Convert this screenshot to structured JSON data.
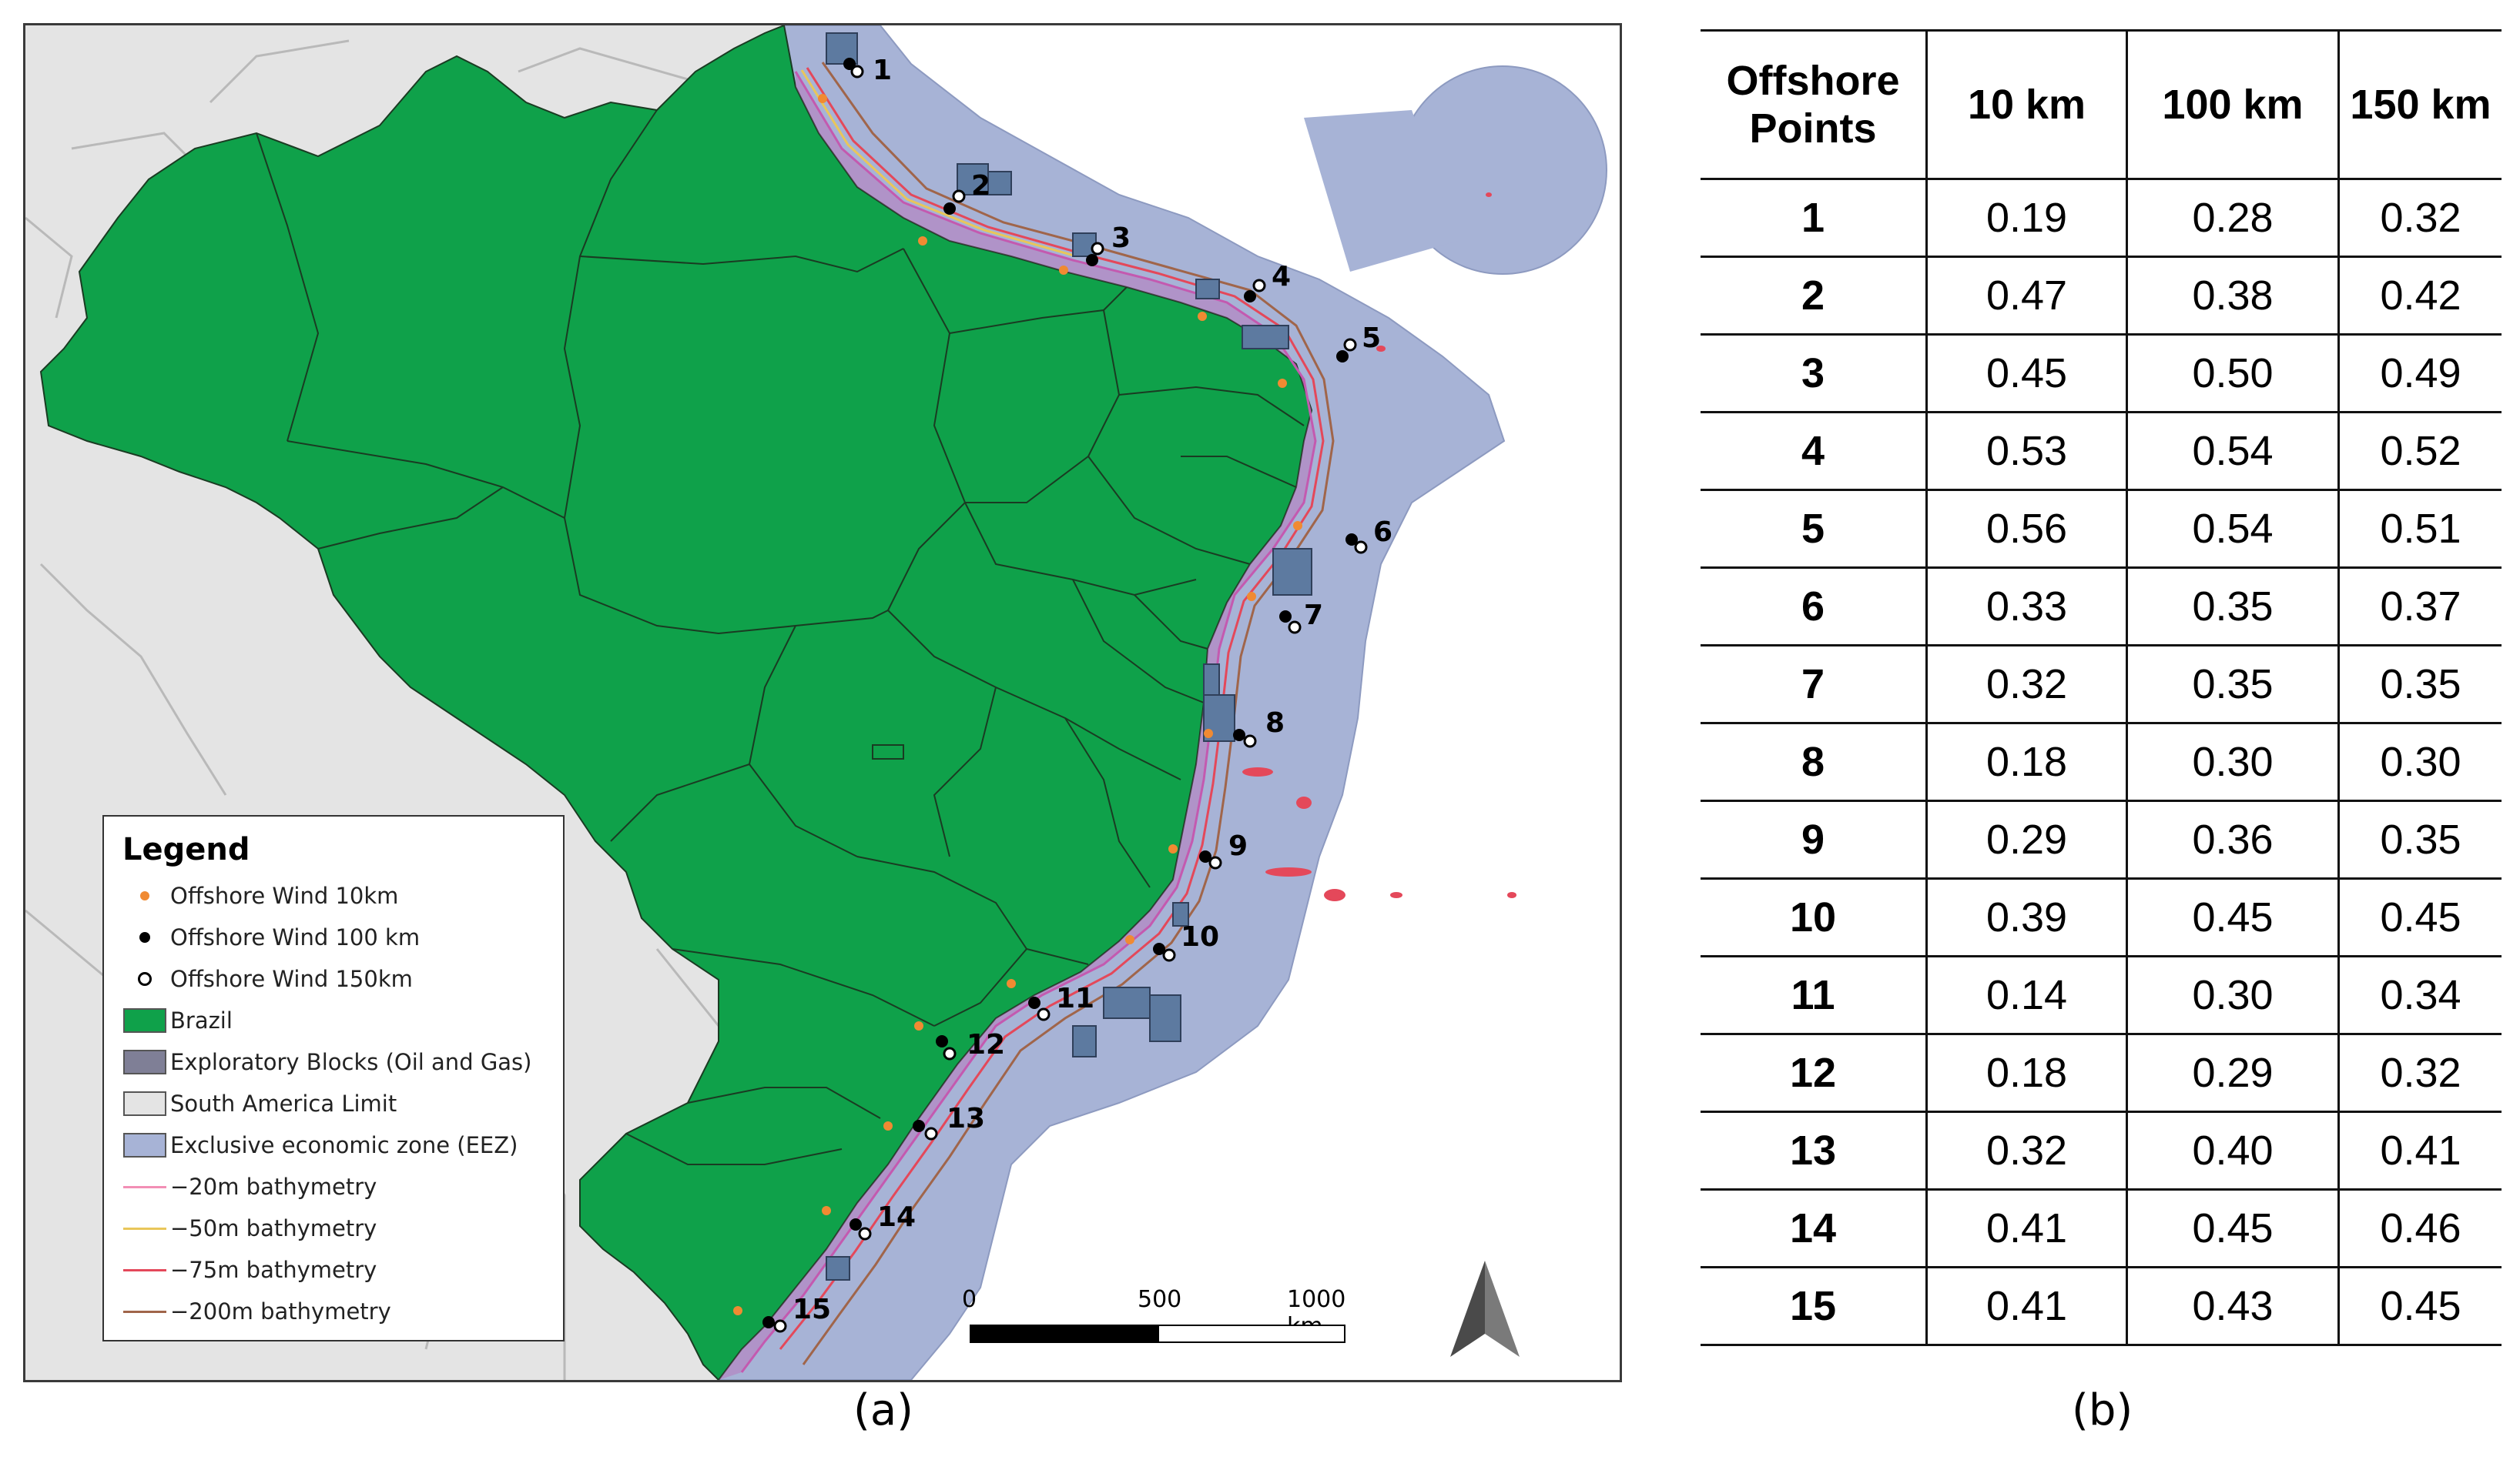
{
  "panel_a": {
    "caption": "(a)",
    "legend": {
      "title": "Legend",
      "items": [
        {
          "label": "Offshore Wind 10km",
          "symbol": "small-dot",
          "color": "#f08a32"
        },
        {
          "label": "Offshore Wind 100 km",
          "symbol": "dot",
          "color": "#000000"
        },
        {
          "label": "Offshore Wind 150km",
          "symbol": "hollow-dot",
          "color": "#000000"
        },
        {
          "label": "Brazil",
          "symbol": "fill",
          "color": "#0fa14a"
        },
        {
          "label": "Exploratory Blocks (Oil and Gas)",
          "symbol": "fill",
          "color": "#7f7f96"
        },
        {
          "label": "South America Limit",
          "symbol": "fill",
          "color": "#e4e4e4"
        },
        {
          "label": "Exclusive economic zone (EEZ)",
          "symbol": "fill",
          "color": "#a7b3d6"
        },
        {
          "label": "−20m bathymetry",
          "symbol": "line",
          "color": "#f28fb5"
        },
        {
          "label": "−50m bathymetry",
          "symbol": "line",
          "color": "#e9c65a"
        },
        {
          "label": "−75m bathymetry",
          "symbol": "line",
          "color": "#e4485a"
        },
        {
          "label": "−200m bathymetry",
          "symbol": "line",
          "color": "#a0654a"
        }
      ]
    },
    "scale_bar": {
      "labels": [
        "0",
        "500",
        "1000 km"
      ]
    },
    "north_arrow": {
      "icon": "north-arrow-icon"
    },
    "point_labels": [
      "1",
      "2",
      "3",
      "4",
      "5",
      "6",
      "7",
      "8",
      "9",
      "10",
      "11",
      "12",
      "13",
      "14",
      "15"
    ]
  },
  "panel_b": {
    "caption": "(b)",
    "headers": [
      "Offshore Points",
      "10 km",
      "100 km",
      "150 km"
    ],
    "rows": [
      [
        "1",
        "0.19",
        "0.28",
        "0.32"
      ],
      [
        "2",
        "0.47",
        "0.38",
        "0.42"
      ],
      [
        "3",
        "0.45",
        "0.50",
        "0.49"
      ],
      [
        "4",
        "0.53",
        "0.54",
        "0.52"
      ],
      [
        "5",
        "0.56",
        "0.54",
        "0.51"
      ],
      [
        "6",
        "0.33",
        "0.35",
        "0.37"
      ],
      [
        "7",
        "0.32",
        "0.35",
        "0.35"
      ],
      [
        "8",
        "0.18",
        "0.30",
        "0.30"
      ],
      [
        "9",
        "0.29",
        "0.36",
        "0.35"
      ],
      [
        "10",
        "0.39",
        "0.45",
        "0.45"
      ],
      [
        "11",
        "0.14",
        "0.30",
        "0.34"
      ],
      [
        "12",
        "0.18",
        "0.29",
        "0.32"
      ],
      [
        "13",
        "0.32",
        "0.40",
        "0.41"
      ],
      [
        "14",
        "0.41",
        "0.45",
        "0.46"
      ],
      [
        "15",
        "0.41",
        "0.43",
        "0.45"
      ]
    ]
  }
}
